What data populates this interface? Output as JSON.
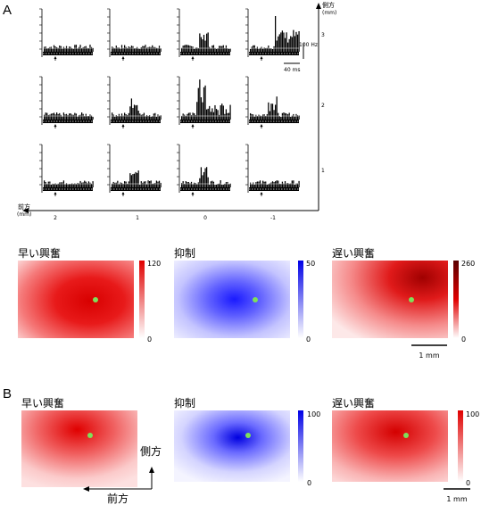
{
  "panel_a": {
    "letter": "A",
    "lateral_axis": {
      "label": "側方",
      "unit": "(mm)",
      "ticks": [
        "3",
        "2",
        "1"
      ]
    },
    "anterior_axis": {
      "label": "前方",
      "unit": "(mm)",
      "ticks": [
        "2",
        "1",
        "0",
        "-1"
      ]
    },
    "scale_rate": "100 Hz",
    "scale_time": "40 ms",
    "histogram_grid": {
      "rows_lateral_mm": [
        3,
        2,
        1
      ],
      "cols_anterior_mm": [
        2,
        1,
        0,
        -1
      ],
      "response_profiles": [
        [
          "weak",
          "weak",
          "early",
          "late"
        ],
        [
          "weak",
          "early",
          "strong",
          "early"
        ],
        [
          "weak",
          "early",
          "early",
          "weak"
        ]
      ]
    },
    "maps": [
      {
        "title": "早い興奮",
        "cbar_max": "120",
        "cbar_min": "0",
        "color": "#e00000"
      },
      {
        "title": "抑制",
        "cbar_max": "50",
        "cbar_min": "0",
        "color": "#0000e6"
      },
      {
        "title": "遅い興奮",
        "cbar_max": "260",
        "cbar_min": "0",
        "color": "#6b0000"
      }
    ],
    "scale_bar": "1 mm"
  },
  "panel_b": {
    "letter": "B",
    "maps": [
      {
        "title": "早い興奮",
        "cbar_max": "",
        "cbar_min": "",
        "color": "#e00000"
      },
      {
        "title": "抑制",
        "cbar_max": "100",
        "cbar_min": "0",
        "color": "#0000e6"
      },
      {
        "title": "遅い興奮",
        "cbar_max": "100",
        "cbar_min": "0",
        "color": "#d00000"
      }
    ],
    "arrow_lateral": "側方",
    "arrow_anterior": "前方",
    "scale_bar": "1 mm"
  },
  "marker_color": "#7ee05a"
}
